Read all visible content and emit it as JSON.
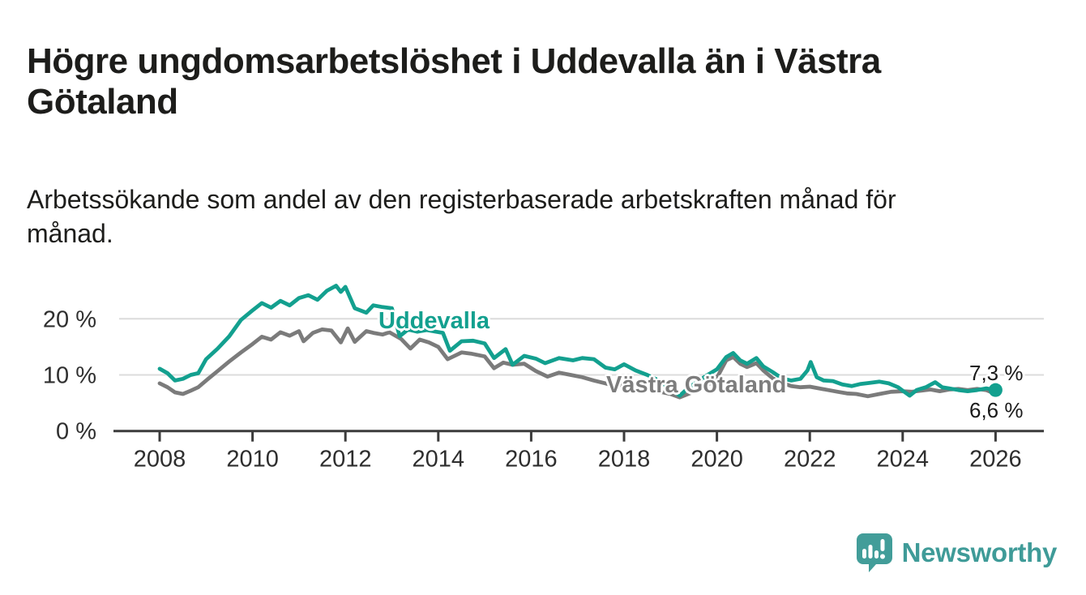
{
  "page": {
    "title": "Högre ungdomsarbetslöshet i Uddevalla än i Västra\nGötaland",
    "subtitle": "Arbetssökande som andel av den registerbaserade arbetskraften månad för\nmånad."
  },
  "branding": {
    "logo_text": "Newsworthy",
    "logo_color": "#3f9b98",
    "logo_icon": "speech-bubble-bar-chart"
  },
  "chart_data": {
    "type": "line",
    "title": "Högre ungdomsarbetslöshet i Uddevalla än i Västra Götaland",
    "subtitle": "Arbetssökande som andel av den registerbaserade arbetskraften månad för månad.",
    "unit": "%",
    "grid": "horizontal",
    "legend": "inline-series-labels",
    "x_axis": {
      "ticks": [
        2008,
        2010,
        2012,
        2014,
        2016,
        2018,
        2020,
        2022,
        2024,
        2026
      ],
      "range": [
        2007.6,
        2027
      ]
    },
    "y_axis": {
      "ticks": [
        {
          "value": 0,
          "label": "0 %"
        },
        {
          "value": 10,
          "label": "10 %"
        },
        {
          "value": 20,
          "label": "20 %"
        }
      ],
      "range": [
        0,
        27
      ]
    },
    "series": [
      {
        "name": "Uddevalla",
        "color": "#13a08f",
        "end_label": "7,3 %",
        "end_value": 7.3,
        "points": [
          [
            2008.0,
            11.1
          ],
          [
            2008.17,
            10.3
          ],
          [
            2008.33,
            9.0
          ],
          [
            2008.5,
            9.3
          ],
          [
            2008.67,
            10.0
          ],
          [
            2008.83,
            10.3
          ],
          [
            2009.0,
            12.8
          ],
          [
            2009.25,
            14.7
          ],
          [
            2009.5,
            16.9
          ],
          [
            2009.75,
            19.8
          ],
          [
            2010.0,
            21.5
          ],
          [
            2010.2,
            22.8
          ],
          [
            2010.4,
            22.0
          ],
          [
            2010.6,
            23.2
          ],
          [
            2010.8,
            22.4
          ],
          [
            2011.0,
            23.7
          ],
          [
            2011.2,
            24.2
          ],
          [
            2011.4,
            23.4
          ],
          [
            2011.6,
            25.0
          ],
          [
            2011.8,
            25.9
          ],
          [
            2011.9,
            24.8
          ],
          [
            2012.0,
            25.7
          ],
          [
            2012.2,
            21.9
          ],
          [
            2012.45,
            21.1
          ],
          [
            2012.6,
            22.4
          ],
          [
            2012.8,
            22.1
          ],
          [
            2013.0,
            21.9
          ],
          [
            2013.17,
            16.9
          ],
          [
            2013.35,
            18.1
          ],
          [
            2013.55,
            17.7
          ],
          [
            2013.75,
            18.0
          ],
          [
            2013.95,
            17.7
          ],
          [
            2014.1,
            17.5
          ],
          [
            2014.25,
            14.3
          ],
          [
            2014.5,
            16.0
          ],
          [
            2014.75,
            16.1
          ],
          [
            2015.0,
            15.6
          ],
          [
            2015.2,
            13.0
          ],
          [
            2015.45,
            14.6
          ],
          [
            2015.6,
            11.8
          ],
          [
            2015.85,
            13.4
          ],
          [
            2016.1,
            12.9
          ],
          [
            2016.3,
            12.1
          ],
          [
            2016.6,
            13.0
          ],
          [
            2016.9,
            12.6
          ],
          [
            2017.1,
            13.0
          ],
          [
            2017.35,
            12.8
          ],
          [
            2017.6,
            11.3
          ],
          [
            2017.8,
            11.0
          ],
          [
            2018.0,
            11.9
          ],
          [
            2018.25,
            10.8
          ],
          [
            2018.5,
            10.0
          ],
          [
            2018.75,
            9.0
          ],
          [
            2019.0,
            7.5
          ],
          [
            2019.2,
            6.3
          ],
          [
            2019.4,
            7.8
          ],
          [
            2019.6,
            8.9
          ],
          [
            2019.8,
            10.0
          ],
          [
            2020.0,
            11.0
          ],
          [
            2020.2,
            13.2
          ],
          [
            2020.35,
            13.9
          ],
          [
            2020.5,
            12.6
          ],
          [
            2020.65,
            12.0
          ],
          [
            2020.85,
            13.0
          ],
          [
            2021.0,
            11.5
          ],
          [
            2021.2,
            10.5
          ],
          [
            2021.4,
            9.4
          ],
          [
            2021.6,
            9.0
          ],
          [
            2021.8,
            9.3
          ],
          [
            2021.95,
            10.8
          ],
          [
            2022.02,
            12.3
          ],
          [
            2022.15,
            9.6
          ],
          [
            2022.3,
            9.0
          ],
          [
            2022.5,
            8.9
          ],
          [
            2022.7,
            8.3
          ],
          [
            2022.9,
            8.0
          ],
          [
            2023.1,
            8.4
          ],
          [
            2023.3,
            8.6
          ],
          [
            2023.5,
            8.8
          ],
          [
            2023.7,
            8.5
          ],
          [
            2023.9,
            7.8
          ],
          [
            2024.05,
            6.9
          ],
          [
            2024.15,
            6.3
          ],
          [
            2024.3,
            7.3
          ],
          [
            2024.5,
            7.8
          ],
          [
            2024.7,
            8.7
          ],
          [
            2024.85,
            7.8
          ],
          [
            2025.0,
            7.6
          ],
          [
            2025.2,
            7.3
          ],
          [
            2025.4,
            7.1
          ],
          [
            2025.6,
            7.3
          ],
          [
            2025.8,
            7.6
          ],
          [
            2026.0,
            7.3
          ]
        ]
      },
      {
        "name": "Västra Götaland",
        "color": "#7b7b7b",
        "end_label": "6,6 %",
        "end_value": 6.6,
        "points": [
          [
            2008.0,
            8.5
          ],
          [
            2008.17,
            7.8
          ],
          [
            2008.33,
            6.9
          ],
          [
            2008.5,
            6.6
          ],
          [
            2008.67,
            7.2
          ],
          [
            2008.83,
            7.8
          ],
          [
            2009.0,
            9.0
          ],
          [
            2009.25,
            10.7
          ],
          [
            2009.5,
            12.4
          ],
          [
            2009.75,
            14.0
          ],
          [
            2010.0,
            15.5
          ],
          [
            2010.2,
            16.8
          ],
          [
            2010.4,
            16.3
          ],
          [
            2010.6,
            17.6
          ],
          [
            2010.8,
            17.0
          ],
          [
            2011.0,
            17.8
          ],
          [
            2011.1,
            16.0
          ],
          [
            2011.3,
            17.5
          ],
          [
            2011.5,
            18.1
          ],
          [
            2011.7,
            17.9
          ],
          [
            2011.9,
            15.8
          ],
          [
            2012.05,
            18.3
          ],
          [
            2012.2,
            15.9
          ],
          [
            2012.45,
            17.8
          ],
          [
            2012.6,
            17.5
          ],
          [
            2012.8,
            17.2
          ],
          [
            2012.95,
            17.6
          ],
          [
            2013.2,
            16.4
          ],
          [
            2013.4,
            14.7
          ],
          [
            2013.6,
            16.3
          ],
          [
            2013.8,
            15.8
          ],
          [
            2014.0,
            15.0
          ],
          [
            2014.2,
            12.8
          ],
          [
            2014.5,
            14.0
          ],
          [
            2014.7,
            13.8
          ],
          [
            2015.0,
            13.3
          ],
          [
            2015.2,
            11.2
          ],
          [
            2015.4,
            12.2
          ],
          [
            2015.6,
            11.8
          ],
          [
            2015.85,
            12.0
          ],
          [
            2016.1,
            10.7
          ],
          [
            2016.35,
            9.7
          ],
          [
            2016.6,
            10.4
          ],
          [
            2016.85,
            10.0
          ],
          [
            2017.1,
            9.6
          ],
          [
            2017.35,
            9.0
          ],
          [
            2017.6,
            8.5
          ],
          [
            2017.8,
            8.0
          ],
          [
            2018.0,
            8.3
          ],
          [
            2018.3,
            7.8
          ],
          [
            2018.6,
            7.3
          ],
          [
            2019.0,
            6.6
          ],
          [
            2019.2,
            6.0
          ],
          [
            2019.5,
            7.0
          ],
          [
            2019.8,
            8.2
          ],
          [
            2020.0,
            9.5
          ],
          [
            2020.2,
            12.6
          ],
          [
            2020.35,
            13.2
          ],
          [
            2020.5,
            12.0
          ],
          [
            2020.65,
            11.4
          ],
          [
            2020.85,
            12.1
          ],
          [
            2021.0,
            10.8
          ],
          [
            2021.2,
            9.4
          ],
          [
            2021.4,
            8.6
          ],
          [
            2021.6,
            8.0
          ],
          [
            2021.8,
            7.8
          ],
          [
            2022.0,
            7.9
          ],
          [
            2022.2,
            7.6
          ],
          [
            2022.4,
            7.3
          ],
          [
            2022.6,
            7.0
          ],
          [
            2022.8,
            6.7
          ],
          [
            2023.0,
            6.6
          ],
          [
            2023.25,
            6.2
          ],
          [
            2023.5,
            6.6
          ],
          [
            2023.75,
            7.0
          ],
          [
            2024.0,
            7.1
          ],
          [
            2024.2,
            7.0
          ],
          [
            2024.4,
            7.2
          ],
          [
            2024.6,
            7.4
          ],
          [
            2024.8,
            7.1
          ],
          [
            2025.0,
            7.4
          ],
          [
            2025.2,
            7.5
          ],
          [
            2025.4,
            7.3
          ],
          [
            2025.6,
            7.5
          ],
          [
            2025.8,
            7.3
          ],
          [
            2026.0,
            6.6
          ]
        ]
      }
    ],
    "colors": {
      "accent_teal": "#13a08f",
      "neutral_gray": "#7b7b7b",
      "gridline": "#dcdcdc",
      "axis": "#3b3b3b"
    }
  }
}
